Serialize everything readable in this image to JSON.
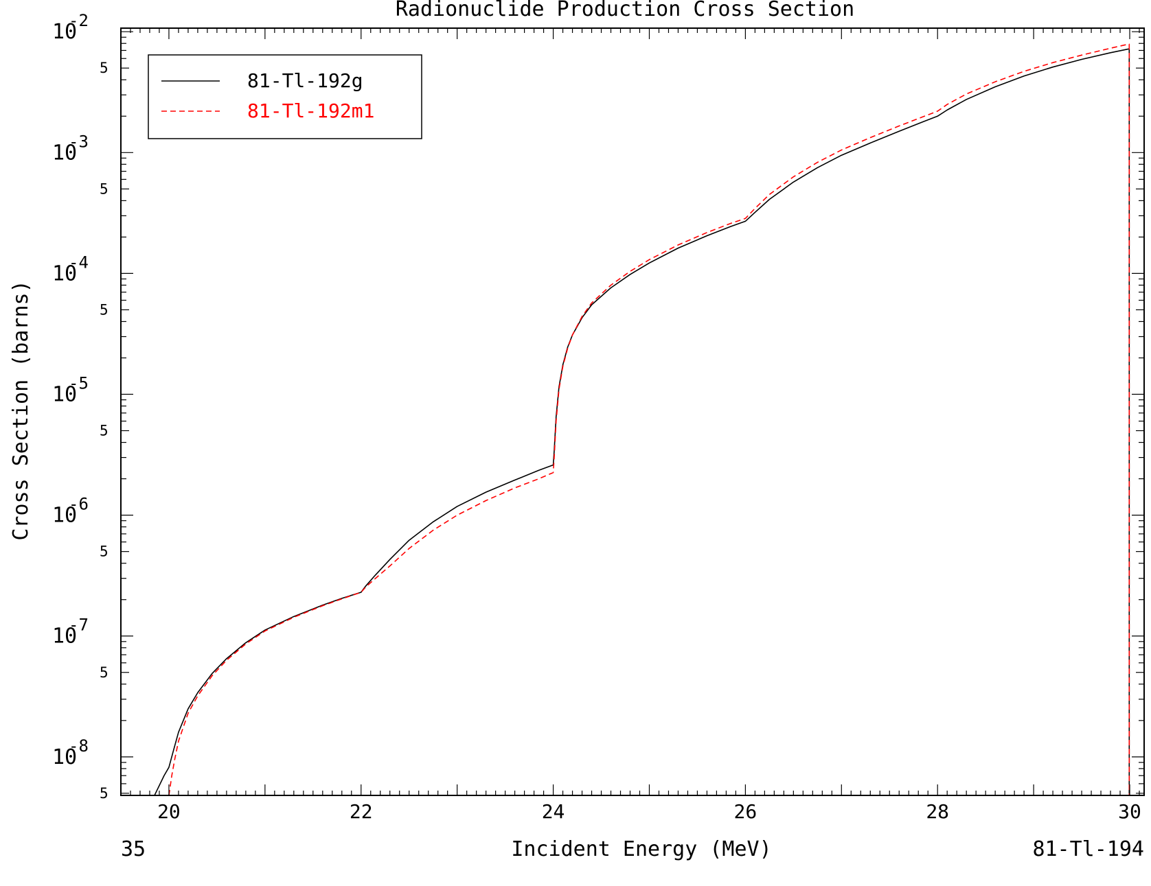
{
  "chart_data": {
    "type": "line",
    "title": "Radionuclide Production Cross Section",
    "xlabel": "Incident Energy (MeV)",
    "ylabel": "Cross Section (barns)",
    "footer_left": "35",
    "footer_right": "81-Tl-194",
    "x_scale": "linear",
    "y_scale": "log",
    "xlim": [
      19.5,
      30.15
    ],
    "ylim": [
      4.8e-09,
      0.0107
    ],
    "x_ticks": [
      20,
      22,
      24,
      26,
      28,
      30
    ],
    "x_tick_labels": [
      "20",
      "22",
      "24",
      "26",
      "28",
      "30"
    ],
    "y_decades": [
      {
        "value": 1e-08,
        "base": "10",
        "exp": "-8"
      },
      {
        "value": 1e-07,
        "base": "10",
        "exp": "-7"
      },
      {
        "value": 1e-06,
        "base": "10",
        "exp": "-6"
      },
      {
        "value": 1e-05,
        "base": "10",
        "exp": "-5"
      },
      {
        "value": 0.0001,
        "base": "10",
        "exp": "-4"
      },
      {
        "value": 0.001,
        "base": "10",
        "exp": "-3"
      },
      {
        "value": 0.01,
        "base": "10",
        "exp": "-2"
      }
    ],
    "y_minor_label": "5",
    "y_minor_label_values": [
      5e-09,
      5e-08,
      5e-07,
      5e-06,
      5e-05,
      0.0005,
      0.005
    ],
    "legend_position": "top-left",
    "grid": false,
    "series": [
      {
        "name": "81-Tl-192g",
        "color": "#000000",
        "dash": "solid",
        "x": [
          19.85,
          19.95,
          20.0,
          20.05,
          20.1,
          20.2,
          20.3,
          20.45,
          20.6,
          20.8,
          21.0,
          21.3,
          21.6,
          21.8,
          22.0,
          22.05,
          22.15,
          22.3,
          22.5,
          22.75,
          23.0,
          23.3,
          23.6,
          23.85,
          24.0,
          24.01,
          24.03,
          24.06,
          24.1,
          24.15,
          24.2,
          24.3,
          24.4,
          24.6,
          24.8,
          25.0,
          25.3,
          25.6,
          25.85,
          26.0,
          26.1,
          26.25,
          26.5,
          26.75,
          27.0,
          27.3,
          27.6,
          27.85,
          28.0,
          28.1,
          28.3,
          28.6,
          28.9,
          29.2,
          29.5,
          29.8,
          29.99,
          29.995,
          29.995
        ],
        "y": [
          4.8e-09,
          7e-09,
          8.2e-09,
          1.15e-08,
          1.6e-08,
          2.5e-08,
          3.4e-08,
          4.9e-08,
          6.5e-08,
          8.8e-08,
          1.12e-07,
          1.45e-07,
          1.8e-07,
          2.05e-07,
          2.3e-07,
          2.6e-07,
          3.2e-07,
          4.3e-07,
          6.2e-07,
          8.8e-07,
          1.18e-06,
          1.55e-06,
          1.95e-06,
          2.35e-06,
          2.6e-06,
          3.4e-06,
          6.5e-06,
          1.15e-05,
          1.75e-05,
          2.45e-05,
          3.1e-05,
          4.3e-05,
          5.5e-05,
          7.6e-05,
          9.8e-05,
          0.000122,
          0.000162,
          0.000205,
          0.000245,
          0.00027,
          0.00032,
          0.00041,
          0.00057,
          0.00075,
          0.00095,
          0.0012,
          0.0015,
          0.0018,
          0.002,
          0.00225,
          0.00275,
          0.0035,
          0.0043,
          0.0051,
          0.0059,
          0.0067,
          0.0072,
          0.0072,
          4.8e-09
        ]
      },
      {
        "name": "81-Tl-192m1",
        "color": "#ff0000",
        "dash": "dashed",
        "x": [
          20.0,
          20.03,
          20.06,
          20.1,
          20.2,
          20.3,
          20.45,
          20.6,
          20.8,
          21.0,
          21.3,
          21.6,
          21.8,
          22.0,
          22.05,
          22.15,
          22.3,
          22.5,
          22.75,
          23.0,
          23.3,
          23.6,
          23.85,
          24.0,
          24.01,
          24.03,
          24.06,
          24.1,
          24.15,
          24.2,
          24.3,
          24.4,
          24.6,
          24.8,
          25.0,
          25.3,
          25.6,
          25.85,
          26.0,
          26.1,
          26.25,
          26.5,
          26.75,
          27.0,
          27.3,
          27.6,
          27.85,
          28.0,
          28.1,
          28.3,
          28.6,
          28.9,
          29.2,
          29.5,
          29.8,
          29.99,
          29.995,
          29.995
        ],
        "y": [
          4.8e-09,
          7e-09,
          9.5e-09,
          1.35e-08,
          2.3e-08,
          3.2e-08,
          4.7e-08,
          6.3e-08,
          8.6e-08,
          1.1e-07,
          1.43e-07,
          1.78e-07,
          2.03e-07,
          2.3e-07,
          2.55e-07,
          3e-07,
          3.8e-07,
          5.3e-07,
          7.5e-07,
          1e-06,
          1.32e-06,
          1.68e-06,
          2e-06,
          2.25e-06,
          3e-06,
          6e-06,
          1.1e-05,
          1.7e-05,
          2.4e-05,
          3.1e-05,
          4.4e-05,
          5.7e-05,
          8e-05,
          0.000104,
          0.00013,
          0.000172,
          0.000218,
          0.00026,
          0.000285,
          0.000345,
          0.00045,
          0.00063,
          0.00083,
          0.00105,
          0.00133,
          0.00166,
          0.00198,
          0.0022,
          0.0025,
          0.00305,
          0.00385,
          0.0047,
          0.00555,
          0.0064,
          0.0073,
          0.0079,
          0.0079,
          4.8e-09
        ]
      }
    ]
  }
}
